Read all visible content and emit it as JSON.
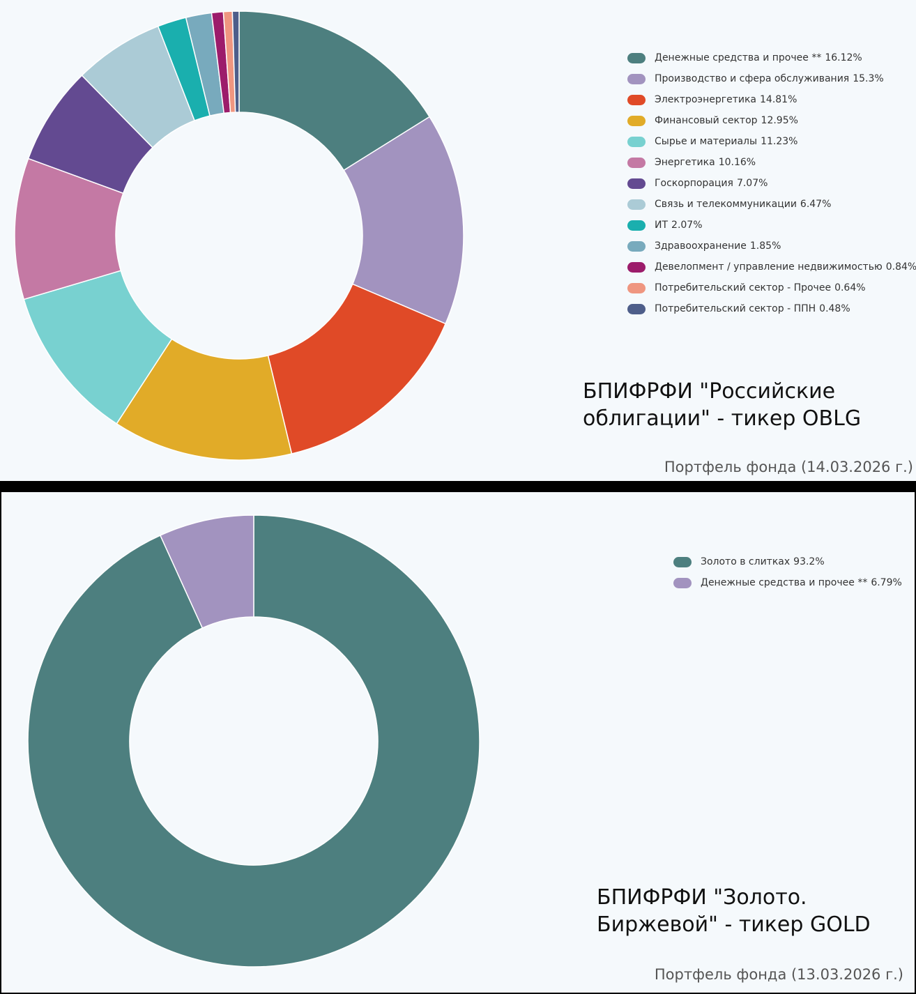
{
  "chart_data": [
    {
      "type": "pie",
      "donut": true,
      "series": [
        {
          "name": "Денежные средства и прочее **",
          "value": 16.12,
          "label": "16.12%",
          "color": "#4d7f7f"
        },
        {
          "name": "Производство и сфера обслуживания",
          "value": 15.3,
          "label": "15.3%",
          "color": "#a293bf"
        },
        {
          "name": "Электроэнергетика",
          "value": 14.81,
          "label": "14.81%",
          "color": "#e04a27"
        },
        {
          "name": "Финансовый сектор",
          "value": 12.95,
          "label": "12.95%",
          "color": "#e1ab28"
        },
        {
          "name": "Сырье и материалы",
          "value": 11.23,
          "label": "11.23%",
          "color": "#78d1d0"
        },
        {
          "name": "Энергетика",
          "value": 10.16,
          "label": "10.16%",
          "color": "#c479a4"
        },
        {
          "name": "Госкорпорация",
          "value": 7.07,
          "label": "7.07%",
          "color": "#634a91"
        },
        {
          "name": "Связь и телекоммуникации",
          "value": 6.47,
          "label": "6.47%",
          "color": "#abcbd6"
        },
        {
          "name": "ИТ",
          "value": 2.07,
          "label": "2.07%",
          "color": "#1aafae"
        },
        {
          "name": "Здравоохранение",
          "value": 1.85,
          "label": "1.85%",
          "color": "#78aabd"
        },
        {
          "name": "Девелопмент / управление недвижимостью",
          "value": 0.84,
          "label": "0.84%",
          "color": "#9c1c6b"
        },
        {
          "name": "Потребительский сектор - Прочее",
          "value": 0.64,
          "label": "0.64%",
          "color": "#ef9680"
        },
        {
          "name": "Потребительский сектор - ППН",
          "value": 0.48,
          "label": "0.48%",
          "color": "#4e5e8a"
        }
      ],
      "legend_position": "right",
      "title_lines": [
        "БПИФРФИ \"Российские",
        "облигации\" - тикер OBLG"
      ],
      "caption": "Портфель фонда (14.03.2026 г.)"
    },
    {
      "type": "pie",
      "donut": true,
      "series": [
        {
          "name": "Золото в слитках",
          "value": 93.2,
          "label": "93.2%",
          "color": "#4d7f7f"
        },
        {
          "name": "Денежные средства и прочее **",
          "value": 6.79,
          "label": "6.79%",
          "color": "#a293bf"
        }
      ],
      "legend_position": "right",
      "title_lines": [
        "БПИФРФИ \"Золото.",
        "Биржевой\" - тикер GOLD"
      ],
      "caption": "Портфель фонда (13.03.2026 г.)"
    }
  ]
}
